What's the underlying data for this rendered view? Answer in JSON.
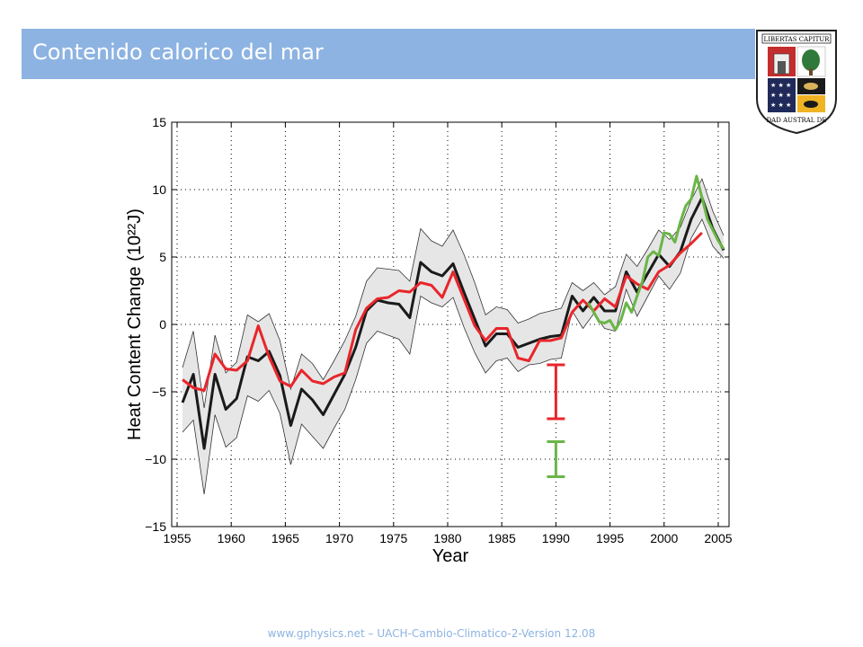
{
  "header": {
    "title": "Contenido calorico del mar",
    "logo_motto": "LIBERTAS CAPITUR",
    "logo_name": "UNIVERSIDAD AUSTRAL DE CHILE"
  },
  "footer": {
    "text": "www.gphysics.net – UACH-Cambio-Climatico-2-Version 12.08"
  },
  "colors": {
    "title_bar": "#8db3e2",
    "series_black": "#1a1a1a",
    "series_red": "#e8262b",
    "series_green": "#6ab547",
    "band": "#e6e6e6"
  },
  "chart_data": {
    "type": "line",
    "title": "",
    "xlabel": "Year",
    "ylabel": "Heat Content Change (10²²J)",
    "xlim": [
      1954.5,
      2006
    ],
    "ylim": [
      -15,
      15
    ],
    "x_ticks": [
      1955,
      1960,
      1965,
      1970,
      1975,
      1980,
      1985,
      1990,
      1995,
      2000,
      2005
    ],
    "y_ticks": [
      -15,
      -10,
      -5,
      0,
      5,
      10,
      15
    ],
    "x_tick_labels": [
      "1955",
      "1960",
      "1965",
      "1970",
      "1975",
      "1980",
      "1985",
      "1990",
      "1995",
      "2000",
      "2005"
    ],
    "y_tick_labels": [
      "−15",
      "−10",
      "−5",
      "0",
      "5",
      "10",
      "15"
    ],
    "grid": true,
    "series": [
      {
        "color": "#1a1a1a",
        "x": [
          1955.5,
          1956.5,
          1957.5,
          1958.5,
          1959.5,
          1960.5,
          1961.5,
          1962.5,
          1963.5,
          1964.5,
          1965.5,
          1966.5,
          1967.5,
          1968.5,
          1969.5,
          1970.5,
          1971.5,
          1972.5,
          1973.5,
          1974.5,
          1975.5,
          1976.5,
          1977.5,
          1978.5,
          1979.5,
          1980.5,
          1981.5,
          1982.5,
          1983.5,
          1984.5,
          1985.5,
          1986.5,
          1987.5,
          1988.5,
          1989.5,
          1990.5,
          1991.5,
          1992.5,
          1993.5,
          1994.5,
          1995.5,
          1996.5,
          1997.5,
          1998.5,
          1999.5,
          2000.5,
          2001.5,
          2002.5,
          2003.5,
          2004.5,
          2005.5
        ],
        "y": [
          -5.8,
          -3.7,
          -9.2,
          -3.7,
          -6.3,
          -5.5,
          -2.4,
          -2.7,
          -2.0,
          -3.8,
          -7.5,
          -4.8,
          -5.6,
          -6.7,
          -5.2,
          -3.7,
          -1.7,
          1.0,
          1.8,
          1.6,
          1.5,
          0.5,
          4.6,
          3.9,
          3.6,
          4.5,
          2.4,
          0.4,
          -1.6,
          -0.7,
          -0.7,
          -1.7,
          -1.4,
          -1.1,
          -0.9,
          -0.8,
          2.1,
          1.0,
          2.0,
          1.0,
          1.0,
          3.9,
          2.4,
          3.8,
          5.2,
          4.3,
          5.4,
          7.8,
          9.4,
          7.1,
          5.5
        ],
        "band_upper": [
          -3.2,
          -0.5,
          -6.2,
          -0.8,
          -3.6,
          -2.8,
          0.7,
          0.2,
          0.8,
          -1.2,
          -4.8,
          -2.2,
          -2.9,
          -4.1,
          -2.7,
          -1.2,
          0.6,
          3.2,
          4.2,
          4.1,
          4.0,
          3.2,
          7.1,
          6.2,
          5.8,
          7.0,
          5.2,
          3.1,
          0.7,
          1.3,
          1.1,
          0.1,
          0.4,
          0.8,
          1.0,
          1.2,
          3.1,
          2.5,
          3.1,
          2.2,
          2.8,
          5.2,
          4.3,
          5.6,
          7.0,
          6.3,
          7.2,
          9.2,
          10.8,
          8.4,
          6.6
        ],
        "band_lower": [
          -8.0,
          -7.1,
          -12.6,
          -6.7,
          -9.1,
          -8.4,
          -5.3,
          -5.7,
          -4.9,
          -6.6,
          -10.4,
          -7.4,
          -8.3,
          -9.2,
          -7.7,
          -6.3,
          -4.1,
          -1.4,
          -0.5,
          -0.8,
          -1.1,
          -2.2,
          2.1,
          1.6,
          1.3,
          2.0,
          -0.2,
          -2.1,
          -3.6,
          -2.7,
          -2.5,
          -3.5,
          -3.0,
          -2.9,
          -2.6,
          -2.5,
          1.0,
          -0.3,
          0.8,
          -0.3,
          -0.5,
          2.6,
          0.6,
          2.1,
          3.6,
          2.6,
          3.8,
          6.4,
          7.8,
          5.8,
          4.9
        ]
      },
      {
        "color": "#e8262b",
        "x": [
          1955.5,
          1956.5,
          1957.5,
          1958.5,
          1959.5,
          1960.5,
          1961.5,
          1962.5,
          1963.5,
          1964.5,
          1965.5,
          1966.5,
          1967.5,
          1968.5,
          1969.5,
          1970.5,
          1971.5,
          1972.5,
          1973.5,
          1974.5,
          1975.5,
          1976.5,
          1977.5,
          1978.5,
          1979.5,
          1980.5,
          1981.5,
          1982.5,
          1983.5,
          1984.5,
          1985.5,
          1986.5,
          1987.5,
          1988.5,
          1989.5,
          1990.5,
          1991.5,
          1992.5,
          1993.5,
          1994.5,
          1995.5,
          1996.5,
          1997.5,
          1998.5,
          1999.5,
          2000.5,
          2001.5,
          2002.5,
          2003.5
        ],
        "y": [
          -4.1,
          -4.7,
          -4.9,
          -2.2,
          -3.3,
          -3.4,
          -2.7,
          -0.1,
          -2.4,
          -4.2,
          -4.6,
          -3.4,
          -4.2,
          -4.4,
          -3.9,
          -3.6,
          -0.4,
          1.2,
          1.9,
          2.0,
          2.5,
          2.4,
          3.1,
          2.9,
          2.0,
          3.9,
          1.9,
          -0.1,
          -1.2,
          -0.3,
          -0.3,
          -2.5,
          -2.7,
          -1.2,
          -1.2,
          -1.0,
          0.9,
          1.8,
          1.0,
          1.9,
          1.3,
          3.6,
          3.0,
          2.6,
          3.9,
          4.4,
          5.3,
          6.0,
          6.8
        ]
      },
      {
        "color": "#6ab547",
        "x": [
          1993,
          1993.5,
          1994,
          1994.5,
          1995,
          1995.5,
          1996,
          1996.5,
          1997,
          1997.5,
          1998,
          1998.5,
          1999,
          1999.5,
          2000,
          2000.5,
          2001,
          2001.5,
          2002,
          2002.5,
          2003,
          2003.5,
          2004,
          2004.5,
          2005,
          2005.5
        ],
        "y": [
          1.6,
          0.9,
          0.2,
          0.1,
          0.3,
          -0.4,
          0.3,
          1.6,
          0.9,
          2.1,
          3.2,
          5.0,
          5.4,
          5.1,
          6.8,
          6.7,
          6.1,
          7.6,
          8.8,
          9.3,
          11.0,
          9.4,
          7.8,
          7.0,
          6.2,
          5.6
        ]
      }
    ],
    "error_bars": [
      {
        "color": "#e8262b",
        "x": 1990,
        "y_top": -3.0,
        "y_bottom": -7.0
      },
      {
        "color": "#6ab547",
        "x": 1990,
        "y_top": -8.7,
        "y_bottom": -11.3
      }
    ]
  }
}
